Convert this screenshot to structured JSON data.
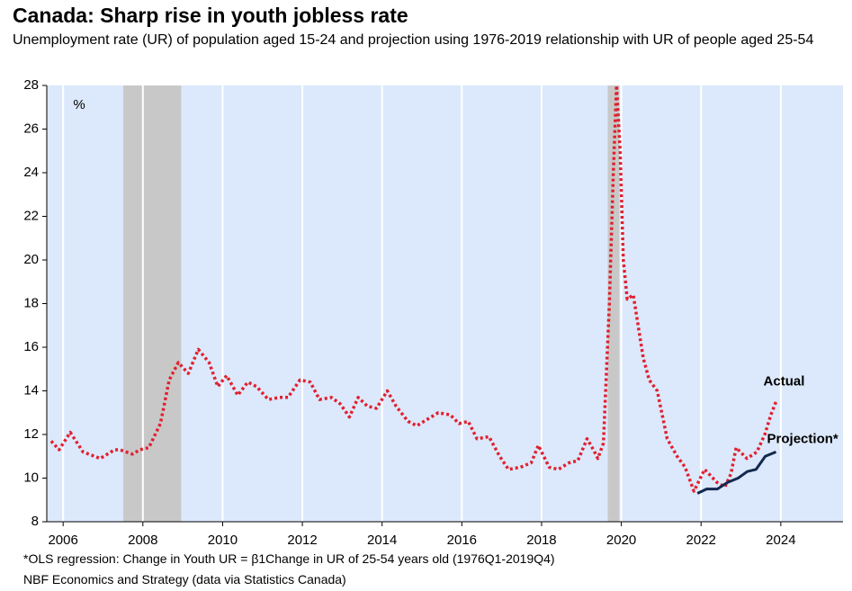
{
  "chart_data": {
    "type": "line",
    "title": "Canada: Sharp rise in youth jobless rate",
    "subtitle": "Unemployment rate (UR) of population aged 15-24 and projection using 1976-2019 relationship with UR of people aged 25-54",
    "y_unit": "%",
    "note": "*OLS regression: Change in Youth UR = β1Change in UR of 25-54 years old (1976Q1-2019Q4)",
    "source": "NBF Economics and Strategy (data via Statistics Canada)",
    "xlim": [
      2005.59,
      2025.56
    ],
    "xticks": [
      2006,
      2008,
      2010,
      2012,
      2014,
      2016,
      2018,
      2020,
      2022,
      2024
    ],
    "ylim": [
      8,
      28
    ],
    "yticks": [
      8,
      10,
      12,
      14,
      16,
      18,
      20,
      22,
      24,
      26,
      28
    ],
    "grid": true,
    "background": "#dce8fb",
    "shaded_ranges": [
      [
        2007.51,
        2008.96
      ],
      [
        2019.66,
        2019.95
      ]
    ],
    "shade_color": "#c8c8c8",
    "series": [
      {
        "name": "Actual",
        "color": "#e0202e",
        "dashed": true,
        "x": [
          2005.7,
          2005.9,
          2006.18,
          2006.5,
          2006.93,
          2007.29,
          2007.42,
          2007.74,
          2007.92,
          2008.15,
          2008.44,
          2008.66,
          2008.89,
          2009.14,
          2009.39,
          2009.66,
          2009.88,
          2010.1,
          2010.38,
          2010.63,
          2010.85,
          2011.15,
          2011.42,
          2011.64,
          2011.94,
          2012.2,
          2012.43,
          2012.73,
          2012.95,
          2013.18,
          2013.4,
          2013.63,
          2013.86,
          2014.13,
          2014.35,
          2014.65,
          2014.87,
          2015.14,
          2015.41,
          2015.71,
          2015.93,
          2016.16,
          2016.38,
          2016.68,
          2016.95,
          2017.17,
          2017.47,
          2017.74,
          2017.92,
          2018.19,
          2018.42,
          2018.69,
          2018.91,
          2019.14,
          2019.3,
          2019.41,
          2019.55,
          2019.7,
          2019.8,
          2019.88,
          2019.97,
          2020.05,
          2020.15,
          2020.3,
          2020.55,
          2020.7,
          2020.9,
          2021.15,
          2021.4,
          2021.6,
          2021.82,
          2022.09,
          2022.4,
          2022.6,
          2022.75,
          2022.88,
          2023.15,
          2023.4,
          2023.6,
          2023.75,
          2023.88
        ],
        "values": [
          11.7,
          11.3,
          12.1,
          11.2,
          10.9,
          11.3,
          11.3,
          11.1,
          11.3,
          11.4,
          12.5,
          14.5,
          15.3,
          14.8,
          15.9,
          15.3,
          14.2,
          14.7,
          13.8,
          14.4,
          14.2,
          13.6,
          13.7,
          13.7,
          14.5,
          14.4,
          13.6,
          13.7,
          13.4,
          12.8,
          13.7,
          13.3,
          13.2,
          14.0,
          13.3,
          12.6,
          12.4,
          12.7,
          13.0,
          12.9,
          12.5,
          12.6,
          11.8,
          11.9,
          11.0,
          10.4,
          10.5,
          10.7,
          11.5,
          10.5,
          10.4,
          10.7,
          10.8,
          11.8,
          11.3,
          10.9,
          11.6,
          18.0,
          24.0,
          28.0,
          25.0,
          20.0,
          18.2,
          18.4,
          15.5,
          14.5,
          14.0,
          11.8,
          11.0,
          10.5,
          9.4,
          10.4,
          9.8,
          9.6,
          10.2,
          11.4,
          10.9,
          11.2,
          12.0,
          12.9,
          13.5
        ]
      },
      {
        "name": "Projection*",
        "color": "#12294f",
        "dashed": false,
        "x": [
          2021.91,
          2022.14,
          2022.41,
          2022.66,
          2022.93,
          2023.16,
          2023.38,
          2023.61,
          2023.88
        ],
        "values": [
          9.3,
          9.5,
          9.5,
          9.8,
          10.0,
          10.3,
          10.4,
          11.0,
          11.2
        ]
      }
    ]
  }
}
